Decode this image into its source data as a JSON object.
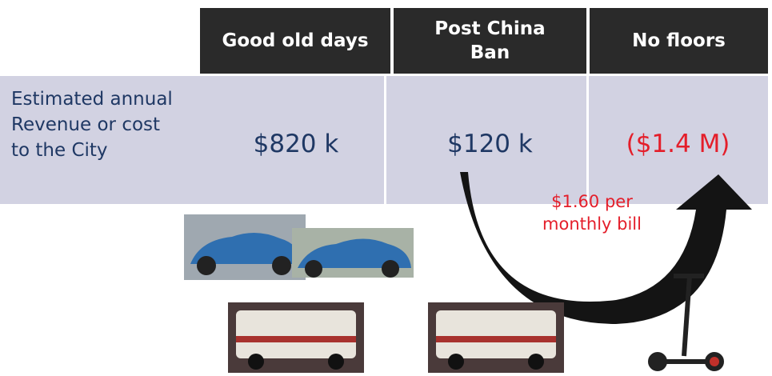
{
  "table": {
    "header": [
      [
        "Good old days"
      ],
      [
        "Post China",
        "Ban"
      ],
      [
        "No floors"
      ]
    ],
    "row_label": [
      "Estimated annual",
      "Revenue or cost",
      "to the City"
    ],
    "cells": [
      "$820 k",
      "$120 k",
      "($1.4 M)"
    ]
  },
  "annotation": [
    "$1.60 per",
    "monthly bill"
  ]
}
